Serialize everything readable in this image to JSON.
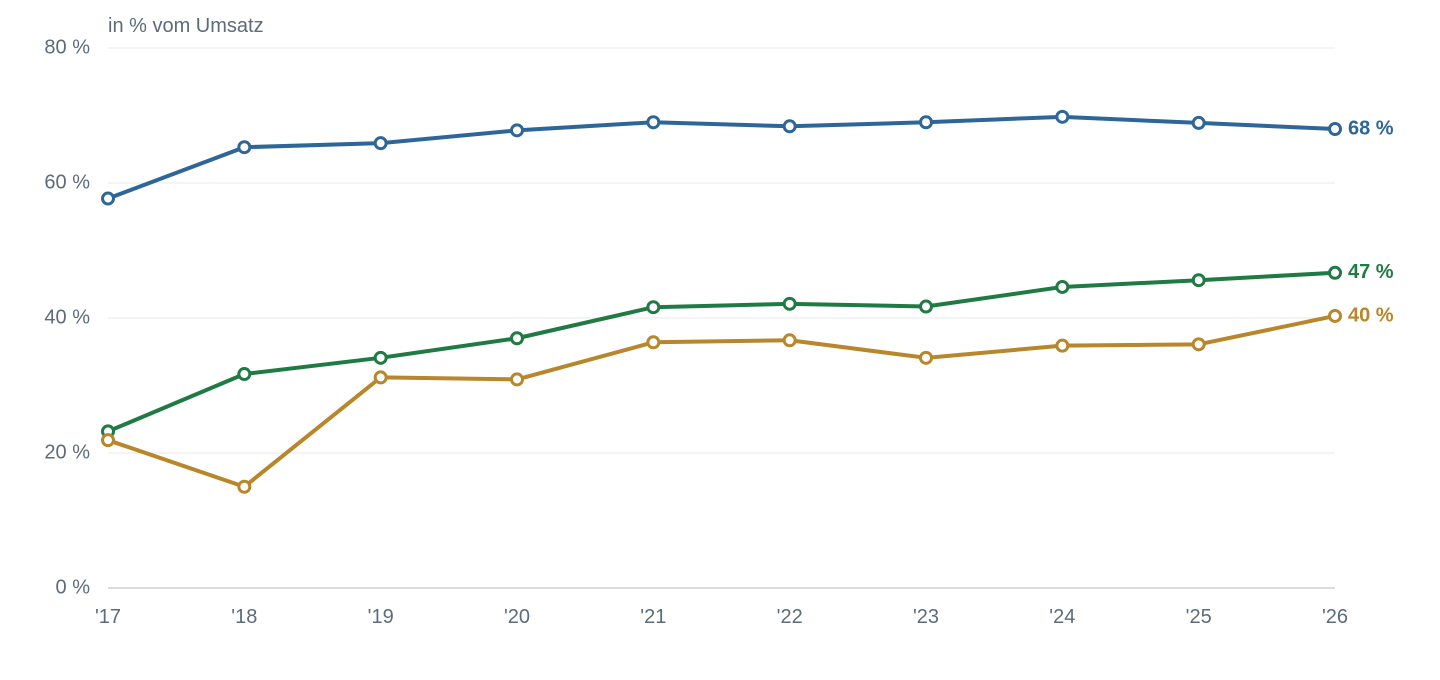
{
  "chart_data": {
    "type": "line",
    "unit_label": "in % vom Umsatz",
    "categories": [
      "'17",
      "'18",
      "'19",
      "'20",
      "'21",
      "'22",
      "'23",
      "'24",
      "'25",
      "'26"
    ],
    "ylim": [
      0,
      80
    ],
    "y_ticks": [
      {
        "value": 0,
        "label": "0 %"
      },
      {
        "value": 20,
        "label": "20 %"
      },
      {
        "value": 40,
        "label": "40 %"
      },
      {
        "value": 60,
        "label": "60 %"
      },
      {
        "value": 80,
        "label": "80 %"
      }
    ],
    "grid": true,
    "series": [
      {
        "color": "#2e6699",
        "values": [
          57.7,
          65.3,
          65.9,
          67.8,
          69.0,
          68.4,
          69.0,
          69.8,
          68.9,
          68.0
        ],
        "end_label": "68 %"
      },
      {
        "color": "#1f7a44",
        "values": [
          23.2,
          31.7,
          34.1,
          37.0,
          41.6,
          42.1,
          41.7,
          44.6,
          45.6,
          46.7
        ],
        "end_label": "47 %"
      },
      {
        "color": "#b8862b",
        "values": [
          21.9,
          15.0,
          31.2,
          30.9,
          36.4,
          36.7,
          34.1,
          35.9,
          36.1,
          40.3
        ],
        "end_label": "40 %"
      }
    ]
  }
}
